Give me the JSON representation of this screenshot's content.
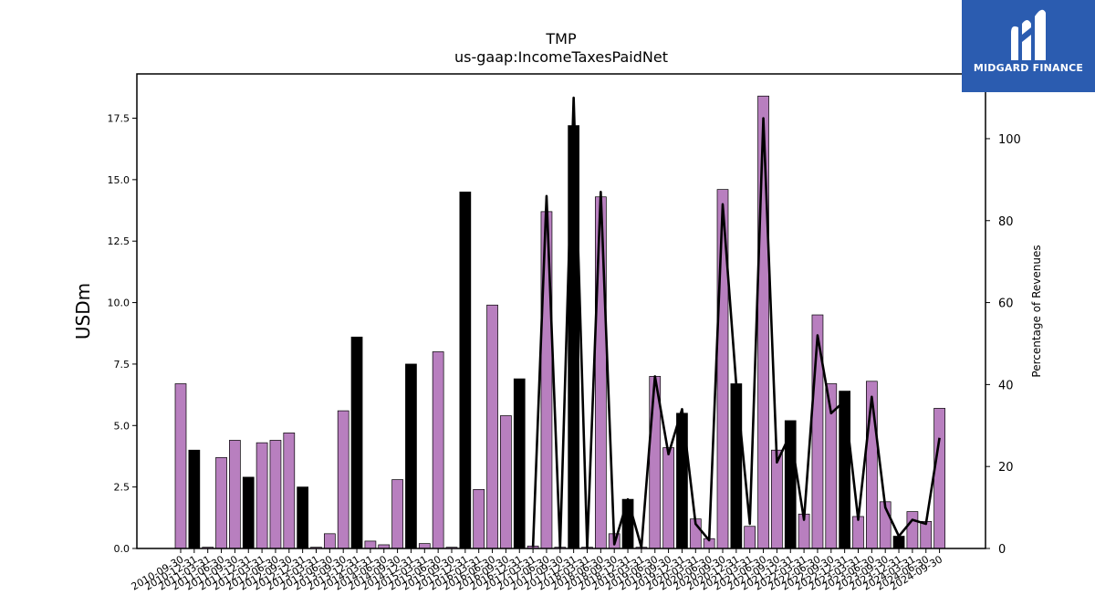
{
  "brand": {
    "name": "MIDGARD FINANCE"
  },
  "chart_data": {
    "type": "bar",
    "title": "TMP",
    "subtitle": "us-gaap:IncomeTaxesPaidNet",
    "ylabel": "USDm",
    "y2label": "Percentage of Revenues",
    "ylim": [
      0,
      19.3
    ],
    "y2lim": [
      0,
      115.8
    ],
    "yticks": [
      "0.0",
      "2.5",
      "5.0",
      "7.5",
      "10.0",
      "12.5",
      "15.0",
      "17.5"
    ],
    "y2ticks": [
      "0",
      "20",
      "40",
      "60",
      "80",
      "100"
    ],
    "colors": {
      "bar_regular": "#b87fbf",
      "bar_highlight": "#000000",
      "line": "#000000"
    },
    "categories": [
      "2010-09-30",
      "2010-12-31",
      "2011-03-31",
      "2011-06-30",
      "2011-09-30",
      "2011-12-31",
      "2012-03-31",
      "2012-06-30",
      "2012-09-30",
      "2012-12-31",
      "2013-03-31",
      "2013-06-30",
      "2013-09-30",
      "2013-12-31",
      "2014-03-31",
      "2014-06-30",
      "2014-09-30",
      "2014-12-31",
      "2015-03-31",
      "2015-06-30",
      "2015-09-30",
      "2015-12-31",
      "2016-03-31",
      "2016-06-30",
      "2016-09-30",
      "2016-12-31",
      "2017-03-31",
      "2017-06-30",
      "2017-09-30",
      "2017-12-31",
      "2018-03-31",
      "2018-06-30",
      "2018-09-30",
      "2018-12-31",
      "2019-03-31",
      "2019-06-30",
      "2019-09-30",
      "2019-12-31",
      "2020-03-31",
      "2020-06-30",
      "2020-09-30",
      "2020-12-31",
      "2021-03-31",
      "2021-06-30",
      "2021-09-30",
      "2021-12-31",
      "2022-03-31",
      "2022-06-30",
      "2022-09-30",
      "2022-12-31",
      "2023-03-31",
      "2023-06-30",
      "2023-09-30",
      "2023-12-31",
      "2024-03-31",
      "2024-06-30",
      "2024-09-30"
    ],
    "series": [
      {
        "values": [
          6.7,
          4.0,
          0.05,
          3.7,
          4.4,
          2.9,
          4.3,
          4.4,
          4.7,
          2.5,
          0.05,
          0.6,
          5.6,
          8.6,
          0.3,
          0.15,
          2.8,
          7.5,
          0.2,
          8.0,
          0.05,
          14.5,
          2.4,
          9.9,
          5.4,
          6.9,
          0.1,
          13.7,
          0.05,
          17.2,
          0.05,
          14.3,
          0.6,
          2.0,
          0.05,
          7.0,
          4.1,
          5.5,
          1.2,
          0.4,
          14.6,
          6.7,
          0.9,
          18.4,
          4.0,
          5.2,
          1.4,
          9.5,
          6.7,
          6.4,
          1.3,
          6.8,
          1.9,
          0.5,
          1.5,
          1.1,
          5.7
        ],
        "highlight": [
          false,
          true,
          false,
          false,
          false,
          true,
          false,
          false,
          false,
          true,
          false,
          false,
          false,
          true,
          false,
          false,
          false,
          true,
          false,
          false,
          false,
          true,
          false,
          false,
          false,
          true,
          false,
          false,
          false,
          true,
          false,
          false,
          false,
          true,
          false,
          false,
          false,
          true,
          false,
          false,
          false,
          true,
          false,
          false,
          false,
          true,
          false,
          false,
          false,
          true,
          false,
          false,
          false,
          true,
          false,
          false,
          false
        ]
      },
      {
        "axis": "right",
        "values": [
          null,
          null,
          null,
          null,
          null,
          null,
          null,
          null,
          null,
          null,
          null,
          null,
          null,
          null,
          null,
          null,
          null,
          null,
          null,
          null,
          null,
          null,
          null,
          null,
          null,
          null,
          0.3,
          86,
          0.2,
          110,
          0.2,
          87,
          1,
          12,
          0.3,
          42,
          23,
          34,
          6,
          2,
          84,
          40,
          6,
          105,
          21,
          28,
          7,
          52,
          33,
          36,
          7,
          37,
          10,
          3,
          7,
          6,
          27
        ]
      }
    ]
  }
}
